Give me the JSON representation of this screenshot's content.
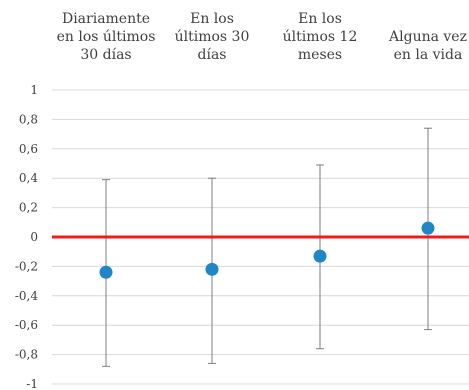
{
  "chart_data": {
    "type": "scatter",
    "categories": [
      "Diariamente\nen los últimos\n30 días",
      "En los\núltimos 30\ndías",
      "En los\núltimos 12\nmeses",
      "Alguna vez\nen la vida"
    ],
    "series": [
      {
        "values": [
          -0.24,
          -0.22,
          -0.13,
          0.06
        ],
        "error_upper": [
          0.39,
          0.4,
          0.49,
          0.74
        ],
        "error_lower": [
          -0.88,
          -0.86,
          -0.76,
          -0.63
        ]
      }
    ],
    "ylim": [
      -1,
      1
    ],
    "yticks": [
      1,
      0.8,
      0.6,
      0.4,
      0.2,
      0,
      -0.2,
      -0.4,
      -0.6,
      -0.8,
      -1
    ],
    "ytick_labels": [
      "1",
      "0,8",
      "0,6",
      "0,4",
      "0,2",
      "0",
      "-0,2",
      "-0,4",
      "-0,6",
      "-0,8",
      "-1"
    ],
    "grid": true,
    "reference_line": 0,
    "colors": {
      "point": "#1f87c7",
      "error_bar": "#7f7f7f",
      "zero_line": "#ee1c1c",
      "grid": "#d9d9d9",
      "text": "#404040"
    },
    "title": "",
    "xlabel": "",
    "ylabel": ""
  }
}
